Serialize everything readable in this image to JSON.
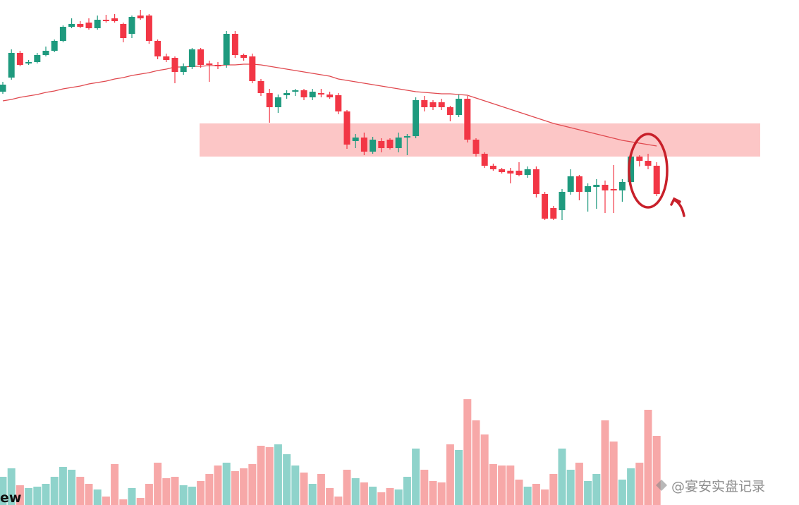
{
  "chart_data": {
    "type": "candlestick",
    "ylim": [
      0,
      716
    ],
    "colors": {
      "up": "#1e9a7e",
      "down": "#f23645",
      "ma": "#e0484e",
      "zone": "#fcbcbc",
      "volume_up": "#8fd3cb",
      "volume_down": "#f7a8a8"
    },
    "zone": [
      494,
      541
    ],
    "open": [
      586,
      606,
      641,
      626,
      628,
      638,
      644,
      658,
      678,
      682,
      684,
      676,
      688,
      690,
      682,
      668,
      694,
      694,
      658,
      636,
      634,
      614,
      621,
      646,
      626,
      624,
      624,
      668,
      638,
      636,
      601,
      584,
      564,
      581,
      586,
      588,
      578,
      584,
      582,
      581,
      558,
      516,
      521,
      501,
      516,
      518,
      506,
      521,
      523,
      574,
      571,
      571,
      564,
      553,
      576,
      518,
      498,
      481,
      476,
      474,
      474,
      468,
      476,
      441,
      421,
      418,
      444,
      466,
      444,
      451,
      454,
      448,
      446,
      458,
      494,
      488,
      481
    ],
    "close": [
      596,
      641,
      624,
      628,
      638,
      644,
      658,
      678,
      682,
      678,
      676,
      688,
      686,
      686,
      662,
      692,
      690,
      658,
      636,
      631,
      614,
      622,
      646,
      624,
      624,
      622,
      668,
      638,
      634,
      601,
      584,
      564,
      578,
      584,
      588,
      578,
      586,
      582,
      578,
      558,
      511,
      521,
      501,
      518,
      506,
      506,
      521,
      523,
      574,
      564,
      564,
      564,
      553,
      576,
      518,
      498,
      481,
      476,
      472,
      470,
      468,
      476,
      441,
      406,
      406,
      444,
      466,
      444,
      452,
      454,
      446,
      446,
      458,
      494,
      488,
      481,
      441
    ],
    "high": [
      600,
      646,
      644,
      631,
      641,
      650,
      660,
      680,
      690,
      686,
      690,
      694,
      695,
      696,
      684,
      694,
      702,
      696,
      660,
      640,
      636,
      626,
      648,
      648,
      630,
      628,
      672,
      672,
      640,
      640,
      604,
      590,
      582,
      588,
      590,
      590,
      590,
      590,
      586,
      584,
      560,
      526,
      528,
      522,
      520,
      520,
      528,
      526,
      578,
      580,
      574,
      576,
      566,
      582,
      580,
      520,
      500,
      484,
      478,
      478,
      486,
      480,
      480,
      444,
      424,
      448,
      476,
      468,
      456,
      462,
      460,
      482,
      462,
      500,
      496,
      498,
      486
    ],
    "low": [
      583,
      603,
      622,
      624,
      626,
      636,
      642,
      656,
      676,
      676,
      674,
      674,
      684,
      684,
      656,
      662,
      688,
      654,
      632,
      628,
      598,
      610,
      618,
      620,
      600,
      618,
      620,
      634,
      630,
      598,
      580,
      542,
      556,
      576,
      580,
      574,
      574,
      578,
      576,
      554,
      505,
      506,
      496,
      498,
      500,
      504,
      500,
      496,
      520,
      558,
      560,
      560,
      544,
      550,
      514,
      494,
      478,
      474,
      470,
      456,
      466,
      464,
      436,
      404,
      404,
      404,
      440,
      432,
      416,
      420,
      414,
      414,
      430,
      454,
      480,
      476,
      438
    ],
    "volume": [
      40,
      52,
      28,
      24,
      26,
      30,
      40,
      54,
      50,
      40,
      30,
      22,
      12,
      58,
      8,
      24,
      10,
      30,
      60,
      38,
      40,
      28,
      26,
      34,
      44,
      56,
      60,
      48,
      52,
      58,
      84,
      82,
      86,
      72,
      56,
      46,
      30,
      44,
      24,
      12,
      50,
      38,
      32,
      26,
      18,
      24,
      22,
      40,
      80,
      50,
      34,
      32,
      86,
      78,
      150,
      120,
      100,
      58,
      56,
      56,
      36,
      26,
      30,
      22,
      44,
      80,
      50,
      60,
      34,
      44,
      120,
      90,
      36,
      52,
      60,
      135,
      98
    ],
    "ma": [
      573,
      575,
      578,
      580,
      582,
      585,
      587,
      590,
      592,
      594,
      597,
      599,
      601,
      604,
      606,
      609,
      611,
      613,
      616,
      618,
      621,
      621,
      622,
      622,
      623,
      623,
      624,
      624,
      625,
      625,
      624,
      622,
      620,
      618,
      616,
      614,
      612,
      610,
      608,
      604,
      602,
      600,
      598,
      596,
      594,
      592,
      590,
      588,
      586,
      585,
      584,
      583,
      583,
      582,
      581,
      577,
      573,
      569,
      565,
      561,
      557,
      553,
      549,
      545,
      541,
      538,
      535,
      532,
      529,
      526,
      523,
      520,
      517,
      515,
      513,
      511,
      509
    ],
    "logo_text": "ew",
    "watermark": "@宴安实盘记录"
  }
}
